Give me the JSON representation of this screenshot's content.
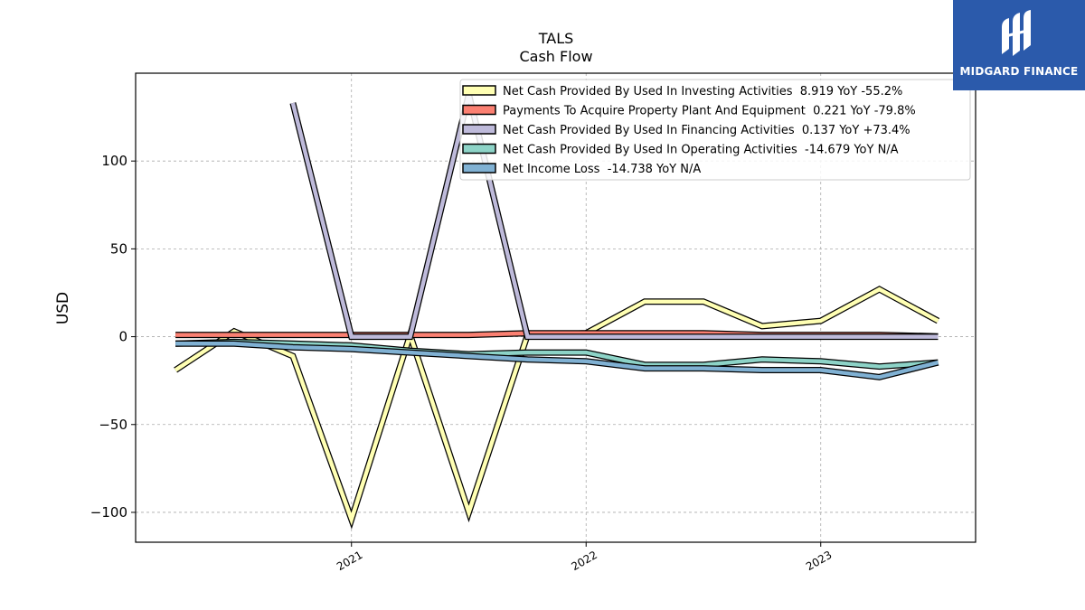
{
  "chart_data": {
    "type": "line",
    "title": "TALS",
    "subtitle": "Cash Flow",
    "ylabel": "USD",
    "xlabel": "",
    "ylim": [
      -117,
      150
    ],
    "xlim": [
      2020.08,
      2023.66
    ],
    "grid": true,
    "legend_position": "top-right",
    "y_ticks": [
      -100,
      -50,
      0,
      50,
      100
    ],
    "x_ticks": [
      {
        "label": "2021",
        "value": 2021.0
      },
      {
        "label": "2022",
        "value": 2022.0
      },
      {
        "label": "2023",
        "value": 2023.0
      }
    ],
    "series": [
      {
        "name": "Net Cash Provided By Used In Investing Activities",
        "legend_value": "8.919 YoY -55.2%",
        "color": "#ffffb3",
        "x": [
          2020.25,
          2020.5,
          2020.75,
          2021.0,
          2021.25,
          2021.5,
          2021.75,
          2022.0,
          2022.25,
          2022.5,
          2022.75,
          2023.0,
          2023.25,
          2023.5
        ],
        "values": [
          -19,
          3,
          -11,
          -104,
          1,
          -100,
          1,
          2,
          20,
          20,
          6,
          9,
          27,
          9
        ]
      },
      {
        "name": "Payments To Acquire Property Plant And Equipment",
        "legend_value": "0.221 YoY -79.8%",
        "color": "#fb8072",
        "x": [
          2020.25,
          2020.5,
          2020.75,
          2021.0,
          2021.25,
          2021.5,
          2021.75,
          2022.0,
          2022.25,
          2022.5,
          2022.75,
          2023.0,
          2023.25,
          2023.5
        ],
        "values": [
          1,
          1,
          1,
          1,
          1,
          1,
          2,
          2,
          2,
          2,
          1,
          1,
          1,
          0.2
        ]
      },
      {
        "name": "Net Cash Provided By Used In Financing Activities",
        "legend_value": "0.137 YoY +73.4%",
        "color": "#bebada",
        "x": [
          2020.75,
          2021.0,
          2021.25,
          2021.5,
          2021.75,
          2022.0,
          2022.25,
          2022.5,
          2022.75,
          2023.0,
          2023.25,
          2023.5
        ],
        "values": [
          133,
          0,
          0,
          138,
          0,
          0,
          0,
          0,
          0,
          0,
          0,
          0
        ]
      },
      {
        "name": "Net Cash Provided By Used In Operating Activities",
        "legend_value": "-14.679 YoY N/A",
        "color": "#8dd3c7",
        "x": [
          2020.25,
          2020.5,
          2020.75,
          2021.0,
          2021.25,
          2021.5,
          2021.75,
          2022.0,
          2022.25,
          2022.5,
          2022.75,
          2023.0,
          2023.25,
          2023.5
        ],
        "values": [
          -4,
          -3,
          -4,
          -5,
          -8,
          -10,
          -9,
          -9,
          -16,
          -16,
          -13,
          -14,
          -17,
          -14.7
        ]
      },
      {
        "name": "Net Income Loss",
        "legend_value": "-14.738 YoY N/A",
        "color": "#80b1d3",
        "x": [
          2020.25,
          2020.5,
          2020.75,
          2021.0,
          2021.25,
          2021.5,
          2021.75,
          2022.0,
          2022.25,
          2022.5,
          2022.75,
          2023.0,
          2023.25,
          2023.5
        ],
        "values": [
          -4,
          -4,
          -6,
          -7,
          -9,
          -11,
          -13,
          -14,
          -18,
          -18,
          -19,
          -19,
          -23,
          -14.7
        ]
      }
    ]
  },
  "logo": {
    "text": "MIDGARD FINANCE",
    "background": "#2b5aab"
  }
}
